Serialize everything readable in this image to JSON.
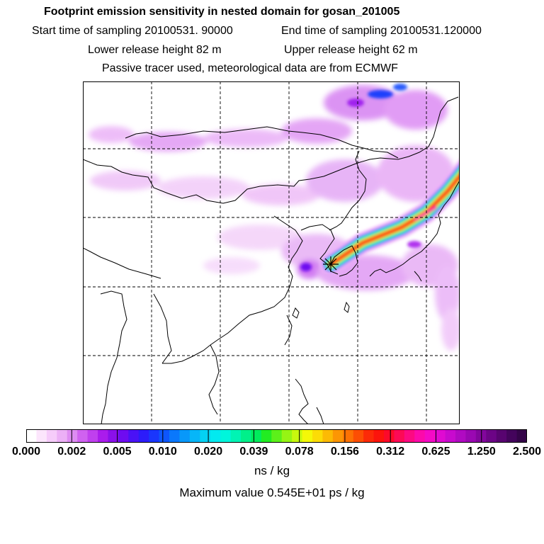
{
  "titles": {
    "line1": "Footprint emission sensitivity in nested domain for gosan_201005",
    "start": "Start time of sampling 20100531. 90000",
    "end": "End time of sampling 20100531.120000",
    "lower": "Lower release height   82 m",
    "upper": "Upper release height   62 m",
    "line4": "Passive tracer used, meteorological data are from ECMWF"
  },
  "map": {
    "icon": "footprint-map",
    "release_marker_icon": "asterisk-star-icon",
    "plume_colors": [
      "#ff33aa",
      "#ff1f1f",
      "#ffcc00",
      "#22ff66",
      "#00eedd",
      "#2266ff"
    ],
    "background_speckle_color": "#cc33ff"
  },
  "legend": {
    "colors": [
      "#ffffff",
      "#fce6fc",
      "#f6ccfa",
      "#ecb0f6",
      "#de8cf2",
      "#d062f0",
      "#c040ee",
      "#aa1cec",
      "#8a10ea",
      "#6e0cf0",
      "#4a12f6",
      "#2c1cfa",
      "#1a36fc",
      "#0e56fc",
      "#0a78fc",
      "#0898fa",
      "#06b6f8",
      "#04d2f4",
      "#02eaf0",
      "#00f6dc",
      "#00f4b4",
      "#00f08a",
      "#00ec5c",
      "#22ec22",
      "#5cf01a",
      "#96f414",
      "#c8f80e",
      "#f4f808",
      "#fcdc06",
      "#fcba04",
      "#fc9604",
      "#fc7204",
      "#fc4e04",
      "#fc2a08",
      "#fc140c",
      "#fc0a2a",
      "#fc0a56",
      "#fc0a82",
      "#fc0aaa",
      "#f40ac6",
      "#e00ad2",
      "#c80ace",
      "#b00ac2",
      "#9a08b2",
      "#82069c",
      "#6c0486",
      "#580470",
      "#44045c",
      "#340448"
    ],
    "ticks": [
      "0.000",
      "0.002",
      "0.005",
      "0.010",
      "0.020",
      "0.039",
      "0.078",
      "0.156",
      "0.312",
      "0.625",
      "1.250",
      "2.500"
    ],
    "unit": "ns / kg",
    "max_value": "Maximum value  0.545E+01 ps / kg"
  }
}
